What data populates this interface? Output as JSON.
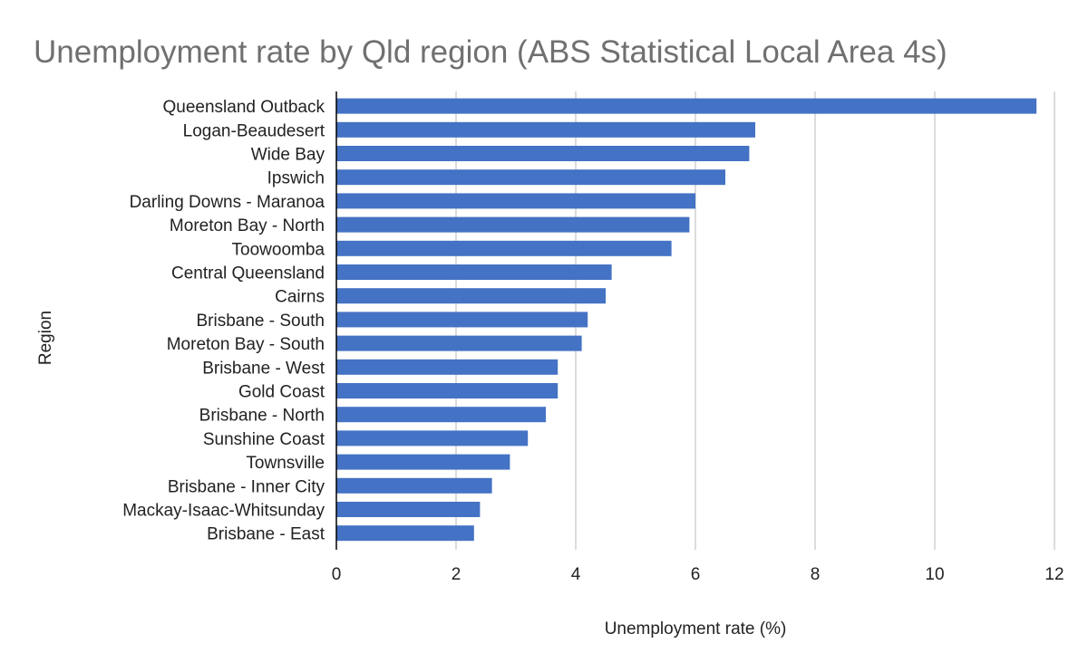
{
  "chart_data": {
    "type": "bar",
    "orientation": "horizontal",
    "title": "Unemployment rate by Qld region (ABS Statistical Local Area 4s)",
    "xlabel": "Unemployment rate (%)",
    "ylabel": "Region",
    "xlim": [
      0,
      12
    ],
    "xticks": [
      0,
      2,
      4,
      6,
      8,
      10,
      12
    ],
    "grid": true,
    "legend": "none",
    "bar_color": "#4472c4",
    "categories": [
      "Queensland Outback",
      "Logan-Beaudesert",
      "Wide Bay",
      "Ipswich",
      "Darling Downs - Maranoa",
      "Moreton Bay - North",
      "Toowoomba",
      "Central Queensland",
      "Cairns",
      "Brisbane - South",
      "Moreton Bay - South",
      "Brisbane - West",
      "Gold Coast",
      "Brisbane - North",
      "Sunshine Coast",
      "Townsville",
      "Brisbane - Inner City",
      "Mackay-Isaac-Whitsunday",
      "Brisbane - East"
    ],
    "values": [
      11.7,
      7.0,
      6.9,
      6.5,
      6.0,
      5.9,
      5.6,
      4.6,
      4.5,
      4.2,
      4.1,
      3.7,
      3.7,
      3.5,
      3.2,
      2.9,
      2.6,
      2.4,
      2.3
    ]
  }
}
